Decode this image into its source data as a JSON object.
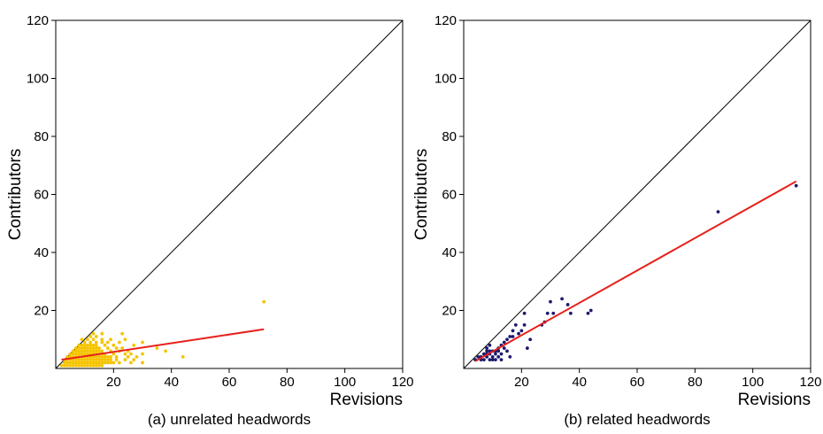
{
  "chart_data": [
    {
      "type": "scatter",
      "caption": "(a) unrelated headwords",
      "xlabel": "Revisions",
      "ylabel": "Contributors",
      "xlim": [
        0,
        120
      ],
      "ylim": [
        0,
        120
      ],
      "xticks": [
        20,
        40,
        60,
        80,
        100,
        120
      ],
      "yticks": [
        20,
        40,
        60,
        80,
        100,
        120
      ],
      "grid": false,
      "point_color": "#f5c400",
      "diagonal_color": "#000000",
      "fit_color": "#e8201b",
      "reference_line": {
        "x": [
          0,
          120
        ],
        "y": [
          0,
          120
        ]
      },
      "fit_line": {
        "x": [
          2,
          72
        ],
        "y": [
          3,
          13.5
        ]
      },
      "points": [
        [
          2,
          1
        ],
        [
          3,
          1
        ],
        [
          4,
          1
        ],
        [
          5,
          1
        ],
        [
          6,
          1
        ],
        [
          7,
          1
        ],
        [
          8,
          1
        ],
        [
          9,
          1
        ],
        [
          10,
          1
        ],
        [
          11,
          1
        ],
        [
          12,
          1
        ],
        [
          13,
          1
        ],
        [
          14,
          1
        ],
        [
          15,
          1
        ],
        [
          16,
          1
        ],
        [
          3,
          2
        ],
        [
          4,
          2
        ],
        [
          5,
          2
        ],
        [
          6,
          2
        ],
        [
          7,
          2
        ],
        [
          8,
          2
        ],
        [
          9,
          2
        ],
        [
          10,
          2
        ],
        [
          11,
          2
        ],
        [
          12,
          2
        ],
        [
          13,
          2
        ],
        [
          14,
          2
        ],
        [
          15,
          2
        ],
        [
          16,
          2
        ],
        [
          17,
          2
        ],
        [
          18,
          2
        ],
        [
          3,
          3
        ],
        [
          4,
          3
        ],
        [
          5,
          3
        ],
        [
          6,
          3
        ],
        [
          7,
          3
        ],
        [
          8,
          3
        ],
        [
          9,
          3
        ],
        [
          10,
          3
        ],
        [
          11,
          3
        ],
        [
          12,
          3
        ],
        [
          13,
          3
        ],
        [
          14,
          3
        ],
        [
          15,
          3
        ],
        [
          16,
          3
        ],
        [
          17,
          3
        ],
        [
          18,
          3
        ],
        [
          4,
          4
        ],
        [
          5,
          4
        ],
        [
          6,
          4
        ],
        [
          7,
          4
        ],
        [
          8,
          4
        ],
        [
          9,
          4
        ],
        [
          10,
          4
        ],
        [
          11,
          4
        ],
        [
          12,
          4
        ],
        [
          13,
          4
        ],
        [
          14,
          4
        ],
        [
          15,
          4
        ],
        [
          16,
          4
        ],
        [
          17,
          4
        ],
        [
          18,
          4
        ],
        [
          5,
          5
        ],
        [
          6,
          5
        ],
        [
          7,
          5
        ],
        [
          8,
          5
        ],
        [
          9,
          5
        ],
        [
          10,
          5
        ],
        [
          11,
          5
        ],
        [
          12,
          5
        ],
        [
          13,
          5
        ],
        [
          14,
          5
        ],
        [
          15,
          5
        ],
        [
          16,
          5
        ],
        [
          17,
          5
        ],
        [
          6,
          6
        ],
        [
          7,
          6
        ],
        [
          8,
          6
        ],
        [
          9,
          6
        ],
        [
          10,
          6
        ],
        [
          11,
          6
        ],
        [
          12,
          6
        ],
        [
          13,
          6
        ],
        [
          14,
          6
        ],
        [
          15,
          6
        ],
        [
          16,
          6
        ],
        [
          7,
          7
        ],
        [
          8,
          7
        ],
        [
          9,
          7
        ],
        [
          10,
          7
        ],
        [
          11,
          7
        ],
        [
          12,
          7
        ],
        [
          13,
          7
        ],
        [
          14,
          7
        ],
        [
          15,
          7
        ],
        [
          8,
          8
        ],
        [
          9,
          8
        ],
        [
          10,
          8
        ],
        [
          11,
          8
        ],
        [
          12,
          8
        ],
        [
          13,
          8
        ],
        [
          14,
          8
        ],
        [
          10,
          9
        ],
        [
          12,
          9
        ],
        [
          14,
          9
        ],
        [
          9,
          10
        ],
        [
          11,
          10
        ],
        [
          13,
          10
        ],
        [
          12,
          11
        ],
        [
          14,
          11
        ],
        [
          13,
          12
        ],
        [
          16,
          12
        ],
        [
          19,
          2
        ],
        [
          20,
          2
        ],
        [
          22,
          2
        ],
        [
          26,
          2
        ],
        [
          30,
          2
        ],
        [
          19,
          3
        ],
        [
          21,
          3
        ],
        [
          24,
          3
        ],
        [
          27,
          3
        ],
        [
          19,
          4
        ],
        [
          21,
          4
        ],
        [
          25,
          4
        ],
        [
          28,
          4
        ],
        [
          44,
          4
        ],
        [
          20,
          5
        ],
        [
          24,
          5
        ],
        [
          26,
          5
        ],
        [
          30,
          5
        ],
        [
          19,
          6
        ],
        [
          22,
          6
        ],
        [
          25,
          6
        ],
        [
          38,
          6
        ],
        [
          18,
          7
        ],
        [
          21,
          7
        ],
        [
          23,
          7
        ],
        [
          35,
          7
        ],
        [
          17,
          8
        ],
        [
          20,
          8
        ],
        [
          27,
          8
        ],
        [
          16,
          9
        ],
        [
          18,
          9
        ],
        [
          22,
          9
        ],
        [
          30,
          9
        ],
        [
          16,
          10
        ],
        [
          19,
          10
        ],
        [
          24,
          10
        ],
        [
          23,
          12
        ],
        [
          72,
          23
        ]
      ]
    },
    {
      "type": "scatter",
      "caption": "(b) related headwords",
      "xlabel": "Revisions",
      "ylabel": "Contributors",
      "xlim": [
        0,
        120
      ],
      "ylim": [
        0,
        120
      ],
      "xticks": [
        20,
        40,
        60,
        80,
        100,
        120
      ],
      "yticks": [
        20,
        40,
        60,
        80,
        100,
        120
      ],
      "grid": false,
      "point_color": "#1c1a6e",
      "diagonal_color": "#000000",
      "fit_color": "#e8201b",
      "reference_line": {
        "x": [
          0,
          120
        ],
        "y": [
          0,
          120
        ]
      },
      "fit_line": {
        "x": [
          4,
          115
        ],
        "y": [
          2.5,
          64.5
        ]
      },
      "points": [
        [
          4,
          3
        ],
        [
          5,
          4
        ],
        [
          6,
          3
        ],
        [
          6,
          4
        ],
        [
          7,
          5
        ],
        [
          7,
          3
        ],
        [
          8,
          6
        ],
        [
          8,
          4
        ],
        [
          8,
          7
        ],
        [
          8,
          5
        ],
        [
          9,
          3
        ],
        [
          9,
          5
        ],
        [
          9,
          6
        ],
        [
          9,
          8
        ],
        [
          10,
          4
        ],
        [
          10,
          6
        ],
        [
          10,
          3
        ],
        [
          11,
          5
        ],
        [
          11,
          6
        ],
        [
          11,
          3
        ],
        [
          12,
          4
        ],
        [
          12,
          7
        ],
        [
          12,
          6
        ],
        [
          13,
          8
        ],
        [
          13,
          5
        ],
        [
          13,
          3
        ],
        [
          14,
          9
        ],
        [
          14,
          7
        ],
        [
          15,
          6
        ],
        [
          15,
          10
        ],
        [
          16,
          11
        ],
        [
          16,
          4
        ],
        [
          17,
          11
        ],
        [
          17,
          13
        ],
        [
          18,
          15
        ],
        [
          19,
          12
        ],
        [
          20,
          13
        ],
        [
          21,
          15
        ],
        [
          21,
          19
        ],
        [
          22,
          7
        ],
        [
          23,
          10
        ],
        [
          27,
          15
        ],
        [
          28,
          16
        ],
        [
          29,
          19
        ],
        [
          30,
          23
        ],
        [
          31,
          19
        ],
        [
          34,
          24
        ],
        [
          36,
          22
        ],
        [
          37,
          19
        ],
        [
          43,
          19
        ],
        [
          44,
          20
        ],
        [
          88,
          54
        ],
        [
          115,
          63
        ]
      ]
    }
  ]
}
